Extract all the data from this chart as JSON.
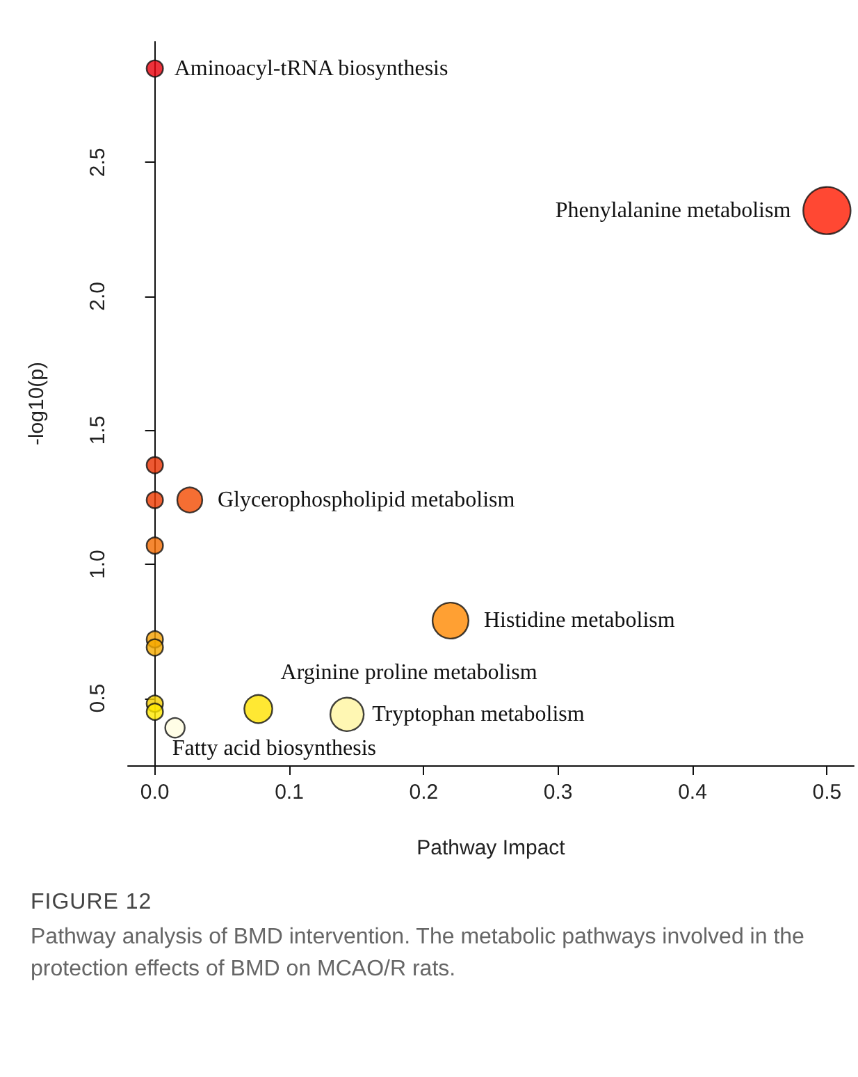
{
  "chart_data": {
    "type": "bubble",
    "title": "FIGURE 12",
    "xlabel": "Pathway Impact",
    "ylabel": "-log10(p)",
    "x": [
      0,
      0.5,
      0,
      0,
      0.026,
      0,
      0.22,
      0,
      0,
      0,
      0,
      0.077,
      0.143,
      0.015
    ],
    "values": [
      2.85,
      2.32,
      1.37,
      1.24,
      1.24,
      1.07,
      0.79,
      0.72,
      0.69,
      0.48,
      0.45,
      0.46,
      0.44,
      0.39
    ],
    "sizes": [
      0.12,
      1,
      0.12,
      0.12,
      0.28,
      0.12,
      0.58,
      0.12,
      0.12,
      0.12,
      0.12,
      0.35,
      0.5,
      0.17
    ],
    "colors": [
      "#e8000b",
      "#ff1a00",
      "#e83000",
      "#ee3a00",
      "#f24a00",
      "#f26a00",
      "#ff8800",
      "#f5a000",
      "#f5aa00",
      "#f5d000",
      "#ffe800",
      "#ffe200",
      "#fff5a0",
      "#fffde0"
    ],
    "xlim": [
      -0.02,
      0.52
    ],
    "xticks": [
      {
        "value": 0,
        "label": "0.0"
      },
      0.1,
      0.2,
      0.3,
      0.4,
      0.5
    ],
    "ylim": [
      0.25,
      2.95
    ],
    "yticks": [
      0.5,
      {
        "value": 1,
        "label": "1.0"
      },
      1.5,
      {
        "value": 2,
        "label": "2.0"
      },
      2.5
    ],
    "annotations": [
      {
        "text": "Aminoacyl-tRNA biosynthesis",
        "x": 0,
        "y": 2.85
      },
      {
        "text": "Phenylalanine metabolism",
        "x": 0.5,
        "y": 2.32
      },
      {
        "text": "Glycerophospholipid metabolism",
        "x": 0.026,
        "y": 1.24
      },
      {
        "text": "Histidine metabolism",
        "x": 0.22,
        "y": 0.79
      },
      {
        "text": "Arginine proline metabolism",
        "x": 0.077,
        "y": 0.46
      },
      {
        "text": "Tryptophan metabolism",
        "x": 0.143,
        "y": 0.44
      },
      {
        "text": "Fatty acid biosynthesis",
        "x": 0.015,
        "y": 0.39
      },
      "Pathway analysis of BMD intervention. The metabolic pathways involved in the protection effects of BMD on MCAO/R rats."
    ]
  }
}
